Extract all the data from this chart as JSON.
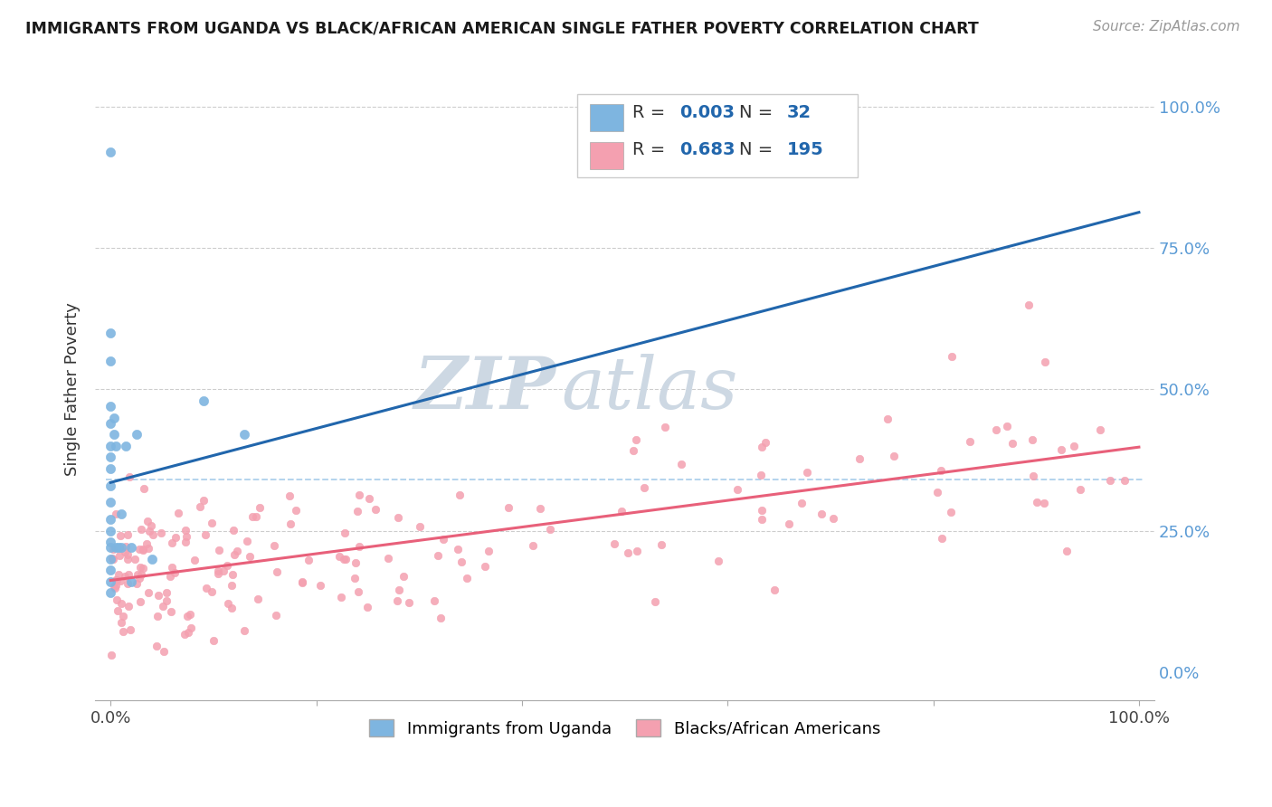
{
  "title": "IMMIGRANTS FROM UGANDA VS BLACK/AFRICAN AMERICAN SINGLE FATHER POVERTY CORRELATION CHART",
  "source": "Source: ZipAtlas.com",
  "ylabel": "Single Father Poverty",
  "legend1_R": "0.003",
  "legend1_N": "32",
  "legend2_R": "0.683",
  "legend2_N": "195",
  "legend1_label": "Immigrants from Uganda",
  "legend2_label": "Blacks/African Americans",
  "blue_color": "#7eb5e0",
  "pink_color": "#f4a0b0",
  "blue_line_color": "#2166ac",
  "pink_line_color": "#e8607a",
  "blue_dash_color": "#a0c8e8",
  "legend_text_color": "#2166ac",
  "background_color": "#ffffff",
  "grid_color": "#c8c8c8",
  "watermark_zip": "ZIP",
  "watermark_atlas": "atlas",
  "watermark_color": "#cdd8e3"
}
